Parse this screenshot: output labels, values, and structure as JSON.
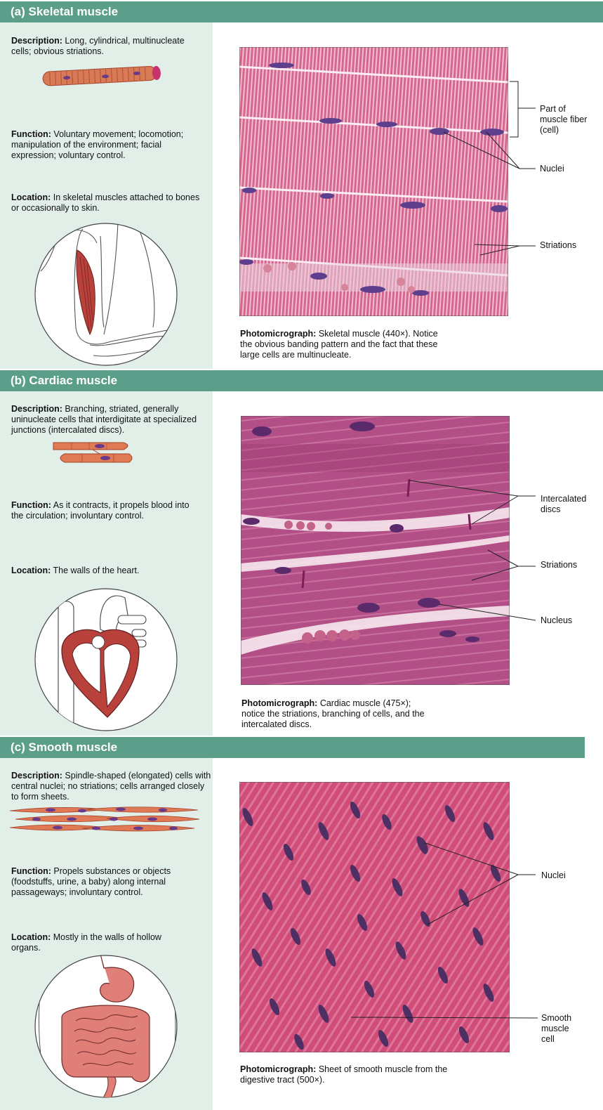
{
  "sections": [
    {
      "header": "(a)  Skeletal muscle",
      "description_label": "Description:",
      "description": "Long, cylindrical, multinucleate cells; obvious striations.",
      "function_label": "Function:",
      "function": "Voluntary movement; locomotion; manipulation of the environment; facial expression; voluntary control.",
      "location_label": "Location:",
      "location": "In skeletal muscles attached to bones or occasionally to skin.",
      "caption_label": "Photomicrograph:",
      "caption": "Skeletal muscle (440×). Notice the obvious banding pattern and the fact that these large cells are multinucleate.",
      "labels": [
        "Part of muscle fiber (cell)",
        "Nuclei",
        "Striations"
      ]
    },
    {
      "header": "(b)  Cardiac muscle",
      "description_label": "Description:",
      "description": "Branching, striated, generally uninucleate cells that interdigitate at specialized junctions (intercalated discs).",
      "function_label": "Function:",
      "function": "As it contracts, it propels blood into the circulation; involuntary control.",
      "location_label": "Location:",
      "location": "The walls of the heart.",
      "caption_label": "Photomicrograph:",
      "caption": "Cardiac muscle (475×); notice the striations, branching of cells, and the intercalated discs.",
      "labels": [
        "Intercalated discs",
        "Striations",
        "Nucleus"
      ]
    },
    {
      "header": "(c)  Smooth muscle",
      "description_label": "Description:",
      "description": "Spindle-shaped (elongated) cells with central nuclei; no striations; cells arranged closely to form sheets.",
      "function_label": "Function:",
      "function": "Propels substances or objects (foodstuffs, urine, a baby) along internal passageways; involuntary control.",
      "location_label": "Location:",
      "location": "Mostly in the walls of hollow organs.",
      "caption_label": "Photomicrograph:",
      "caption": "Sheet of smooth muscle from the digestive tract (500×).",
      "labels": [
        "Nuclei",
        "Smooth muscle cell"
      ]
    }
  ],
  "colors": {
    "header": "#5b9e8a",
    "panel": "#e1efe8",
    "skeletal_tissue": "#d86a93",
    "cardiac_tissue": "#b64d86",
    "smooth_tissue": "#d9537a",
    "muscle": "#c0504d"
  }
}
